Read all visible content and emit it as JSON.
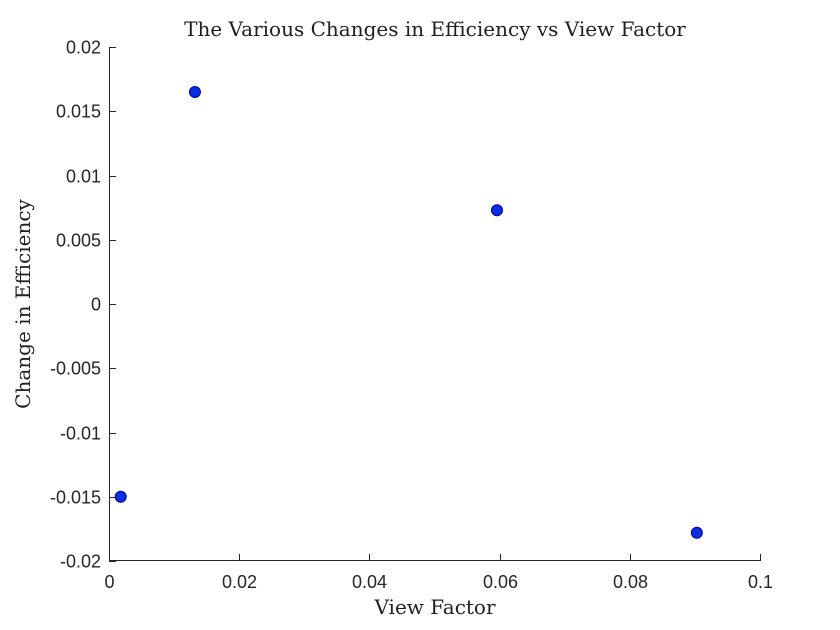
{
  "chart_data": {
    "type": "scatter",
    "title": "The Various Changes in Efficiency vs View Factor",
    "xlabel": "View Factor",
    "ylabel": "Change in Efficiency",
    "xlim": [
      0,
      0.1
    ],
    "ylim": [
      -0.02,
      0.02
    ],
    "x_ticks": [
      0,
      0.02,
      0.04,
      0.06,
      0.08,
      0.1
    ],
    "x_tick_labels": [
      "0",
      "0.02",
      "0.04",
      "0.06",
      "0.08",
      "0.1"
    ],
    "y_ticks": [
      -0.02,
      -0.015,
      -0.01,
      -0.005,
      0,
      0.005,
      0.01,
      0.015,
      0.02
    ],
    "y_tick_labels": [
      "-0.02",
      "-0.015",
      "-0.01",
      "-0.005",
      "0",
      "0.005",
      "0.01",
      "0.015",
      "0.02"
    ],
    "grid": false,
    "legend": "none",
    "marker_color": "#0a2fe0",
    "marker_edge_color": "#0000a8",
    "points": [
      {
        "x": 0.0018,
        "y": -0.015
      },
      {
        "x": 0.0132,
        "y": 0.0165
      },
      {
        "x": 0.0596,
        "y": 0.0073
      },
      {
        "x": 0.0903,
        "y": -0.0178
      }
    ]
  }
}
